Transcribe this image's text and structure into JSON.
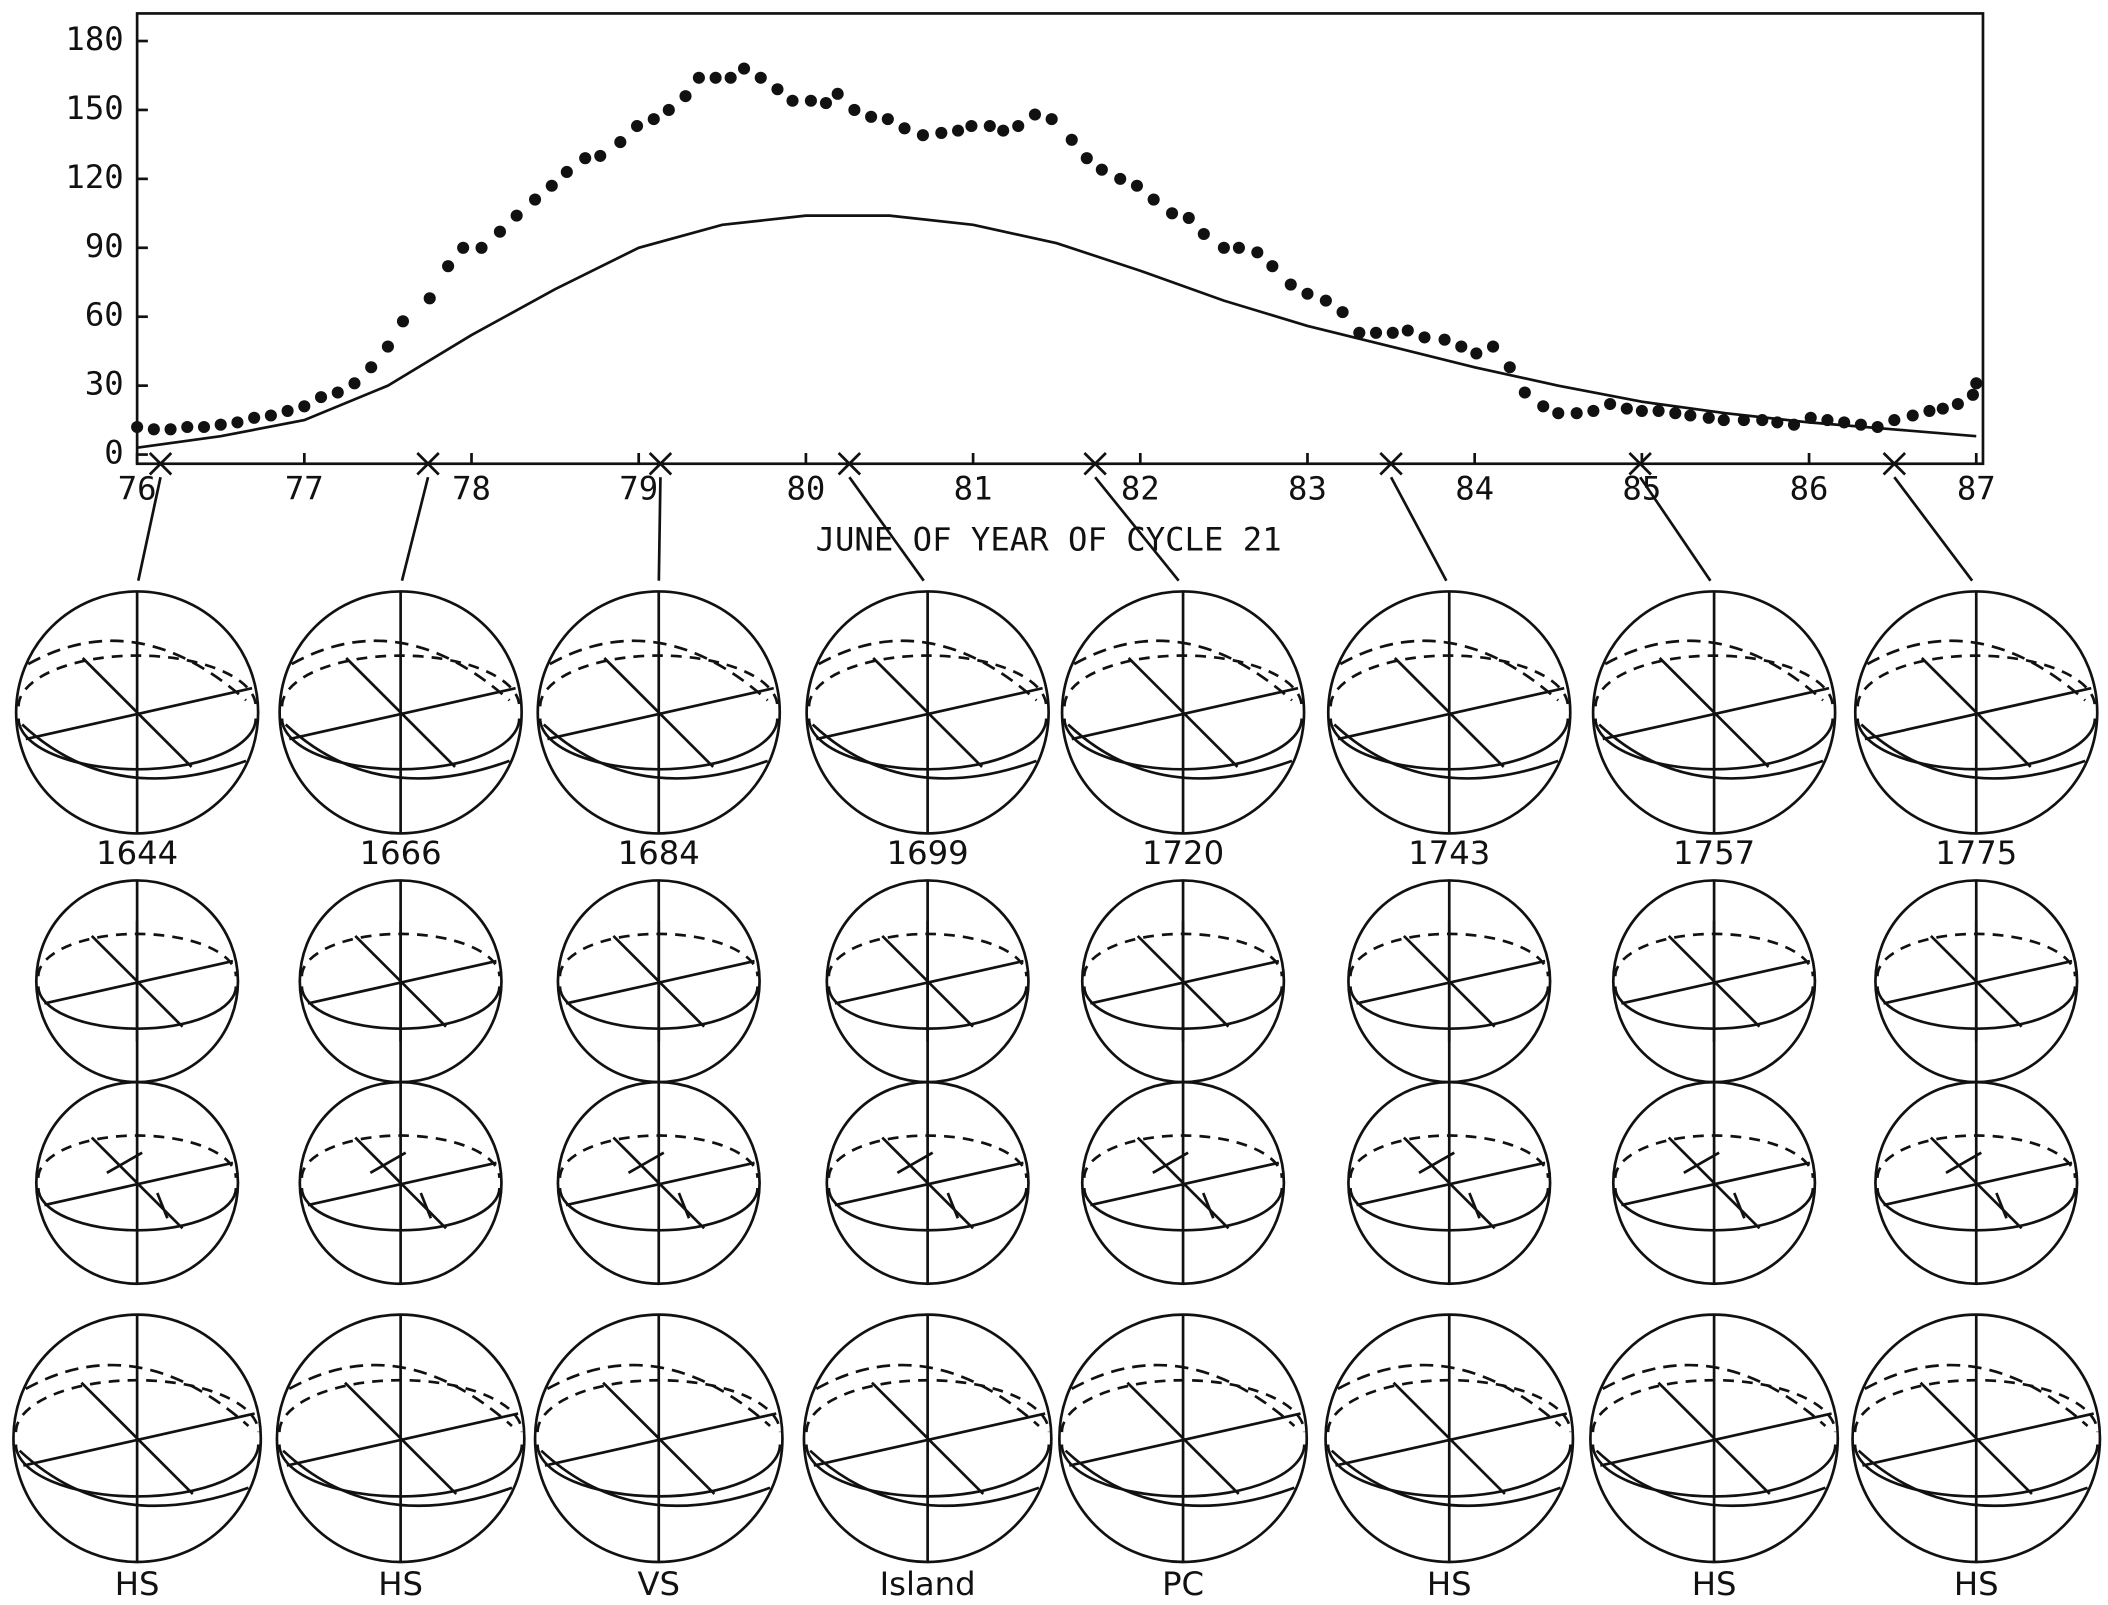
{
  "chart_data": {
    "type": "scatter",
    "x_label": "JUNE OF YEAR OF CYCLE 21",
    "xlim": [
      76,
      87
    ],
    "ylim": [
      -4,
      192
    ],
    "xticks": [
      76,
      77,
      78,
      79,
      80,
      81,
      82,
      83,
      84,
      85,
      86,
      87
    ],
    "yticks": [
      0,
      30,
      60,
      90,
      120,
      150,
      180
    ],
    "series": [
      {
        "type": "scatter",
        "color": "#111111",
        "x": [
          76.0,
          76.1,
          76.2,
          76.3,
          76.4,
          76.5,
          76.6,
          76.7,
          76.8,
          76.9,
          77.0,
          77.1,
          77.2,
          77.3,
          77.4,
          77.5,
          77.59,
          77.75,
          77.86,
          77.95,
          78.06,
          78.17,
          78.27,
          78.38,
          78.48,
          78.57,
          78.68,
          78.77,
          78.89,
          78.99,
          79.09,
          79.18,
          79.28,
          79.36,
          79.46,
          79.55,
          79.63,
          79.73,
          79.83,
          79.92,
          80.03,
          80.12,
          80.19,
          80.29,
          80.39,
          80.49,
          80.59,
          80.7,
          80.81,
          80.91,
          80.99,
          81.1,
          81.18,
          81.27,
          81.37,
          81.47,
          81.59,
          81.68,
          81.77,
          81.88,
          81.98,
          82.08,
          82.19,
          82.29,
          82.38,
          82.5,
          82.59,
          82.7,
          82.79,
          82.9,
          83.0,
          83.11,
          83.21,
          83.31,
          83.41,
          83.51,
          83.6,
          83.7,
          83.82,
          83.92,
          84.01,
          84.11,
          84.21,
          84.3,
          84.41,
          84.5,
          84.61,
          84.71,
          84.81,
          84.91,
          85.0,
          85.1,
          85.2,
          85.29,
          85.4,
          85.49,
          85.61,
          85.72,
          85.81,
          85.91,
          86.01,
          86.11,
          86.21,
          86.31,
          86.41,
          86.51,
          86.62,
          86.72,
          86.8,
          86.89,
          86.98,
          87.0
        ],
        "values": [
          12,
          11,
          11,
          12,
          12,
          13,
          14,
          16,
          17,
          19,
          21,
          25,
          27,
          31,
          38,
          47,
          58,
          68,
          82,
          90,
          90,
          97,
          104,
          111,
          117,
          123,
          129,
          130,
          136,
          143,
          146,
          150,
          156,
          164,
          164,
          164,
          168,
          164,
          159,
          154,
          154,
          153,
          157,
          150,
          147,
          146,
          142,
          139,
          140,
          141,
          143,
          143,
          141,
          143,
          148,
          146,
          137,
          129,
          124,
          120,
          117,
          111,
          105,
          103,
          96,
          90,
          90,
          88,
          82,
          74,
          70,
          67,
          62,
          53,
          53,
          53,
          54,
          51,
          50,
          47,
          44,
          47,
          38,
          27,
          21,
          18,
          18,
          19,
          22,
          20,
          19,
          19,
          18,
          17,
          16,
          15,
          15,
          15,
          14,
          13,
          16,
          15,
          14,
          13,
          12,
          15,
          17,
          19,
          20,
          22,
          26,
          31
        ]
      },
      {
        "type": "line",
        "color": "#111111",
        "x": [
          76,
          76.5,
          77,
          77.5,
          78,
          78.5,
          79,
          79.5,
          80,
          80.5,
          81,
          81.5,
          82,
          82.5,
          83,
          83.5,
          84,
          84.5,
          85,
          85.5,
          86,
          86.5,
          87
        ],
        "values": [
          3,
          8,
          15,
          30,
          52,
          72,
          90,
          100,
          104,
          104,
          100,
          92,
          80,
          67,
          56,
          47,
          38,
          30,
          23,
          18,
          14,
          11,
          8
        ]
      }
    ],
    "markers": [
      76.14,
      77.74,
      79.13,
      80.26,
      81.73,
      83.5,
      84.99,
      86.51
    ]
  },
  "panels": [
    {
      "rotation": "1644",
      "structure": "HS"
    },
    {
      "rotation": "1666",
      "structure": "HS"
    },
    {
      "rotation": "1684",
      "structure": "VS"
    },
    {
      "rotation": "1699",
      "structure": "Island"
    },
    {
      "rotation": "1720",
      "structure": "PC"
    },
    {
      "rotation": "1743",
      "structure": "HS"
    },
    {
      "rotation": "1757",
      "structure": "HS"
    },
    {
      "rotation": "1775",
      "structure": "HS"
    }
  ]
}
